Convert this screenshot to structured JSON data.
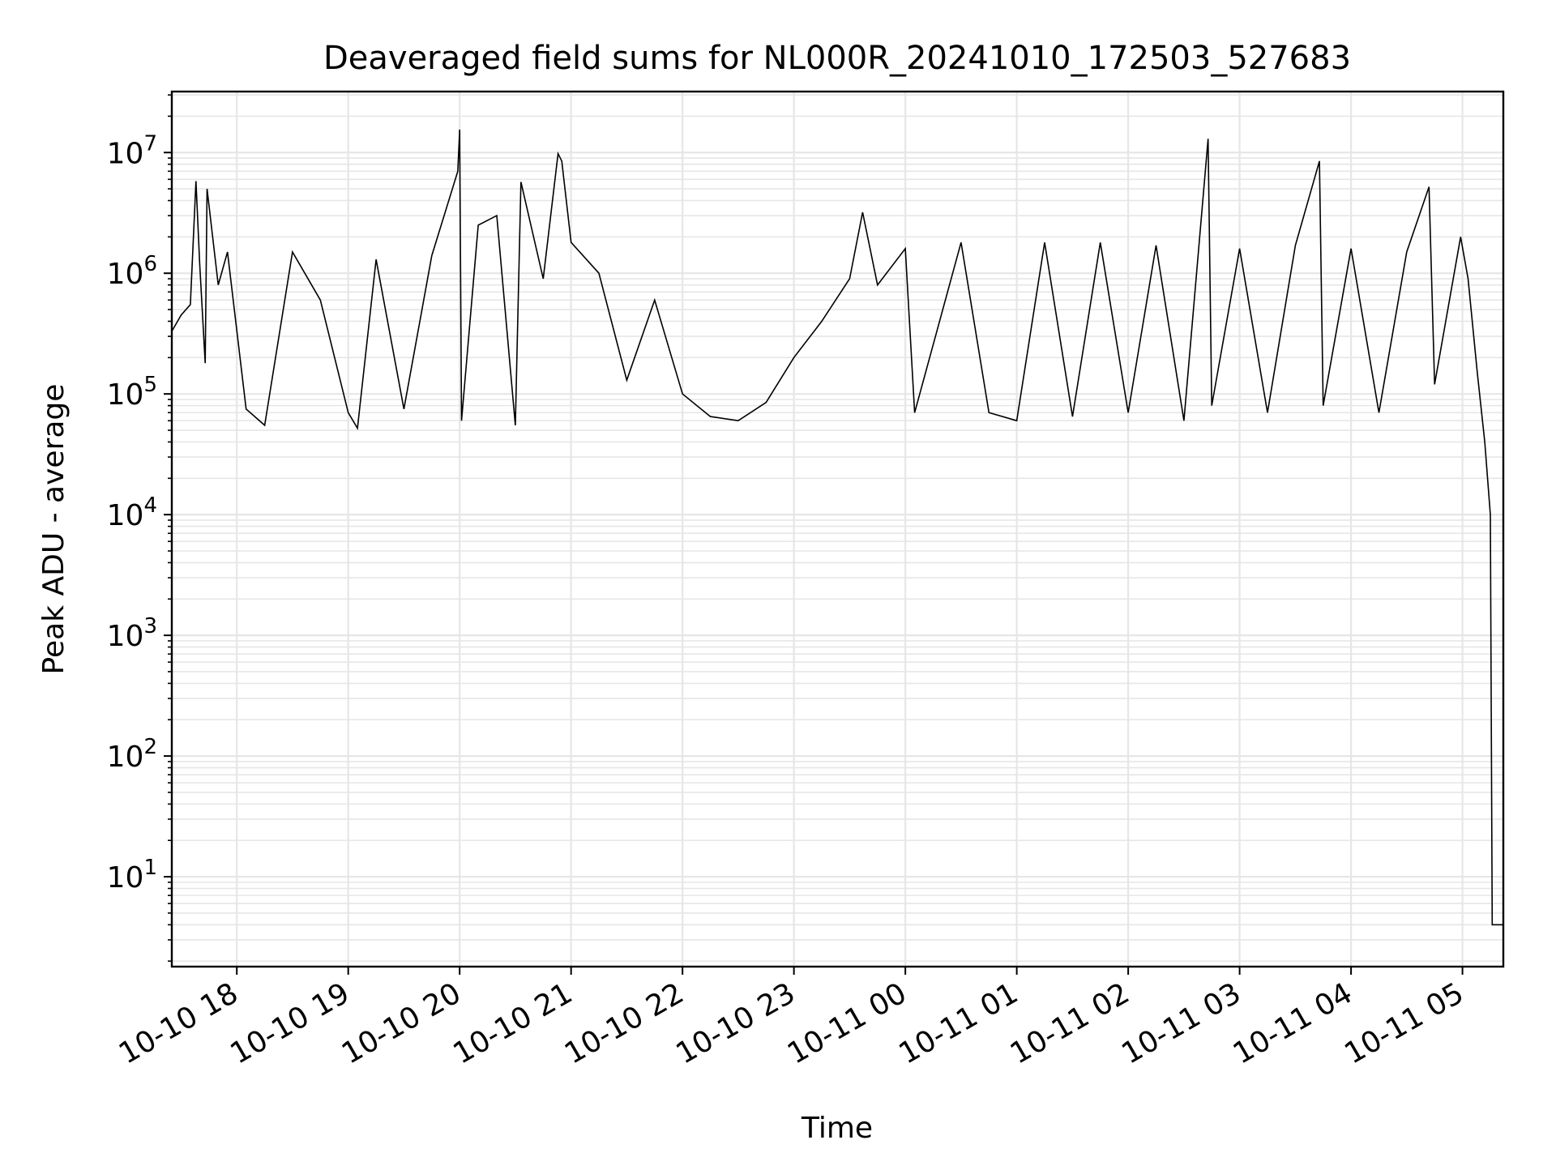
{
  "chart_data": {
    "type": "line",
    "title": "Deaveraged field sums for NL000R_20241010_172503_527683",
    "xlabel": "Time",
    "ylabel": "Peak ADU - average",
    "yscale": "log",
    "ylim": [
      1.8,
      32000000
    ],
    "xlim": [
      "2024-10-10 17:25",
      "2024-10-11 05:22"
    ],
    "grid": true,
    "legend": "none",
    "line_color": "#000000",
    "grid_color": "#e6e6e6",
    "x_ticks": [
      {
        "t": "2024-10-10 18:00",
        "label": "10-10 18"
      },
      {
        "t": "2024-10-10 19:00",
        "label": "10-10 19"
      },
      {
        "t": "2024-10-10 20:00",
        "label": "10-10 20"
      },
      {
        "t": "2024-10-10 21:00",
        "label": "10-10 21"
      },
      {
        "t": "2024-10-10 22:00",
        "label": "10-10 22"
      },
      {
        "t": "2024-10-10 23:00",
        "label": "10-10 23"
      },
      {
        "t": "2024-10-11 00:00",
        "label": "10-11 00"
      },
      {
        "t": "2024-10-11 01:00",
        "label": "10-11 01"
      },
      {
        "t": "2024-10-11 02:00",
        "label": "10-11 02"
      },
      {
        "t": "2024-10-11 03:00",
        "label": "10-11 03"
      },
      {
        "t": "2024-10-11 04:00",
        "label": "10-11 04"
      },
      {
        "t": "2024-10-11 05:00",
        "label": "10-11 05"
      }
    ],
    "y_ticks": [
      {
        "v": 10,
        "base": "10",
        "exp": "1"
      },
      {
        "v": 100,
        "base": "10",
        "exp": "2"
      },
      {
        "v": 1000,
        "base": "10",
        "exp": "3"
      },
      {
        "v": 10000,
        "base": "10",
        "exp": "4"
      },
      {
        "v": 100000,
        "base": "10",
        "exp": "5"
      },
      {
        "v": 1000000,
        "base": "10",
        "exp": "6"
      },
      {
        "v": 10000000,
        "base": "10",
        "exp": "7"
      }
    ],
    "series": [
      {
        "points": [
          [
            "2024-10-10 17:25",
            330000
          ],
          [
            "2024-10-10 17:30",
            450000
          ],
          [
            "2024-10-10 17:35",
            550000
          ],
          [
            "2024-10-10 17:38",
            5800000
          ],
          [
            "2024-10-10 17:40",
            1200000
          ],
          [
            "2024-10-10 17:43",
            180000
          ],
          [
            "2024-10-10 17:44",
            5000000
          ],
          [
            "2024-10-10 17:50",
            800000
          ],
          [
            "2024-10-10 17:55",
            1500000
          ],
          [
            "2024-10-10 18:05",
            75000
          ],
          [
            "2024-10-10 18:15",
            55000
          ],
          [
            "2024-10-10 18:30",
            1500000
          ],
          [
            "2024-10-10 18:45",
            600000
          ],
          [
            "2024-10-10 19:00",
            70000
          ],
          [
            "2024-10-10 19:05",
            52000
          ],
          [
            "2024-10-10 19:15",
            1300000
          ],
          [
            "2024-10-10 19:30",
            75000
          ],
          [
            "2024-10-10 19:45",
            1400000
          ],
          [
            "2024-10-10 19:59",
            7000000
          ],
          [
            "2024-10-10 20:00",
            15500000
          ],
          [
            "2024-10-10 20:01",
            60000
          ],
          [
            "2024-10-10 20:10",
            2500000
          ],
          [
            "2024-10-10 20:20",
            3000000
          ],
          [
            "2024-10-10 20:30",
            55000
          ],
          [
            "2024-10-10 20:33",
            5700000
          ],
          [
            "2024-10-10 20:45",
            900000
          ],
          [
            "2024-10-10 20:53",
            9800000
          ],
          [
            "2024-10-10 20:55",
            8500000
          ],
          [
            "2024-10-10 21:00",
            1800000
          ],
          [
            "2024-10-10 21:15",
            1000000
          ],
          [
            "2024-10-10 21:30",
            130000
          ],
          [
            "2024-10-10 21:45",
            600000
          ],
          [
            "2024-10-10 22:00",
            100000
          ],
          [
            "2024-10-10 22:15",
            65000
          ],
          [
            "2024-10-10 22:30",
            60000
          ],
          [
            "2024-10-10 22:45",
            85000
          ],
          [
            "2024-10-10 23:00",
            200000
          ],
          [
            "2024-10-10 23:15",
            400000
          ],
          [
            "2024-10-10 23:30",
            900000
          ],
          [
            "2024-10-10 23:37",
            3200000
          ],
          [
            "2024-10-10 23:45",
            800000
          ],
          [
            "2024-10-11 00:00",
            1600000
          ],
          [
            "2024-10-11 00:05",
            70000
          ],
          [
            "2024-10-11 00:30",
            1800000
          ],
          [
            "2024-10-11 00:45",
            70000
          ],
          [
            "2024-10-11 01:00",
            60000
          ],
          [
            "2024-10-11 01:15",
            1800000
          ],
          [
            "2024-10-11 01:30",
            65000
          ],
          [
            "2024-10-11 01:45",
            1800000
          ],
          [
            "2024-10-11 02:00",
            70000
          ],
          [
            "2024-10-11 02:15",
            1700000
          ],
          [
            "2024-10-11 02:30",
            60000
          ],
          [
            "2024-10-11 02:43",
            13000000
          ],
          [
            "2024-10-11 02:45",
            80000
          ],
          [
            "2024-10-11 03:00",
            1600000
          ],
          [
            "2024-10-11 03:15",
            70000
          ],
          [
            "2024-10-11 03:30",
            1700000
          ],
          [
            "2024-10-11 03:43",
            8500000
          ],
          [
            "2024-10-11 03:45",
            80000
          ],
          [
            "2024-10-11 04:00",
            1600000
          ],
          [
            "2024-10-11 04:15",
            70000
          ],
          [
            "2024-10-11 04:30",
            1500000
          ],
          [
            "2024-10-11 04:42",
            5200000
          ],
          [
            "2024-10-11 04:45",
            120000
          ],
          [
            "2024-10-11 04:59",
            2000000
          ],
          [
            "2024-10-11 05:03",
            900000
          ],
          [
            "2024-10-11 05:08",
            150000
          ],
          [
            "2024-10-11 05:12",
            40000
          ],
          [
            "2024-10-11 05:15",
            10000
          ],
          [
            "2024-10-11 05:16",
            4
          ],
          [
            "2024-10-11 05:22",
            4
          ]
        ]
      }
    ]
  }
}
